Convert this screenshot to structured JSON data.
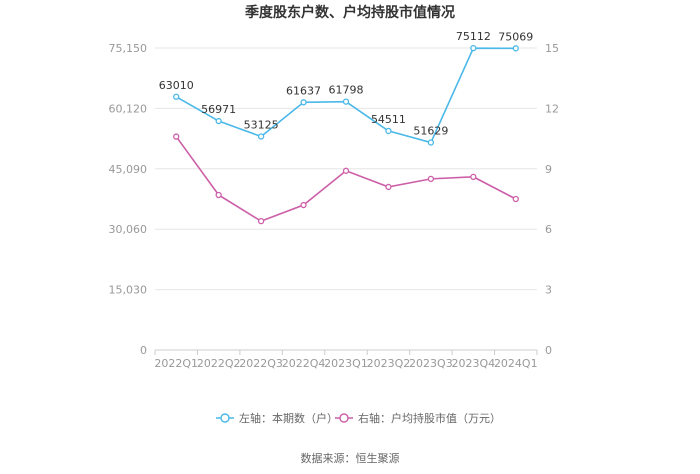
{
  "chart_data": {
    "type": "line",
    "title": "季度股东户数、户均持股市值情况",
    "categories": [
      "2022Q1",
      "2022Q2",
      "2022Q3",
      "2022Q4",
      "2023Q1",
      "2023Q2",
      "2023Q3",
      "2023Q4",
      "2024Q1"
    ],
    "y_left": {
      "ylim": [
        0,
        75150
      ],
      "ticks": [
        "0",
        "15,030",
        "30,060",
        "45,090",
        "60,120",
        "75,150"
      ]
    },
    "y_right": {
      "ylim": [
        0,
        15
      ],
      "ticks": [
        "0",
        "3",
        "6",
        "9",
        "12",
        "15"
      ]
    },
    "series": [
      {
        "name": "左轴：本期数（户）",
        "axis": "left",
        "color": "#4ab8e8",
        "values": [
          63010,
          56971,
          53125,
          61637,
          61798,
          54511,
          51629,
          75112,
          75069
        ],
        "labels": [
          "63010",
          "56971",
          "53125",
          "61637",
          "61798",
          "54511",
          "51629",
          "75112",
          "75069"
        ]
      },
      {
        "name": "右轴：户均持股市值（万元）",
        "axis": "right",
        "color": "#cc5fa8",
        "values": [
          10.6,
          7.7,
          6.4,
          7.2,
          8.9,
          8.1,
          8.5,
          8.6,
          7.5
        ]
      }
    ],
    "grid": true,
    "legend_position": "bottom"
  },
  "footer": {
    "source": "数据来源：恒生聚源"
  }
}
